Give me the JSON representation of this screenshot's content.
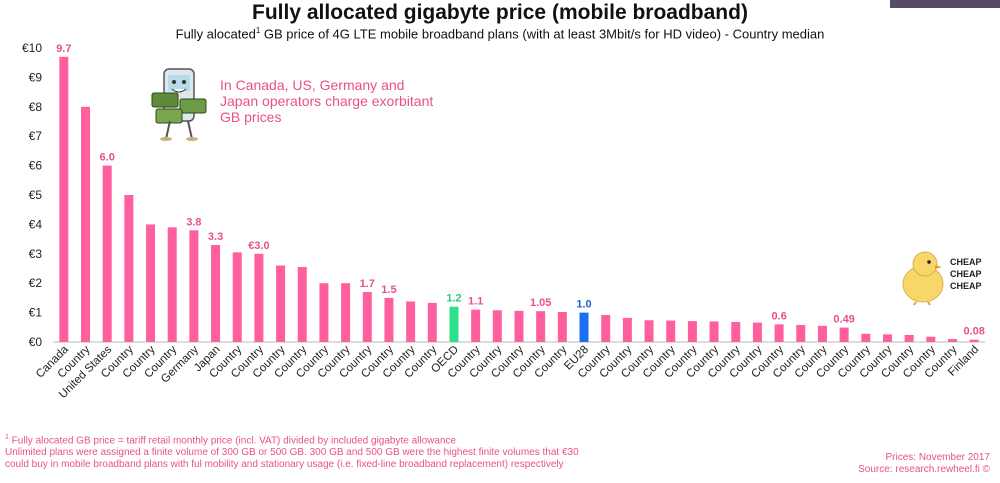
{
  "header": {
    "title": "Fully allocated gigabyte price (mobile broadband)",
    "subtitle_pre": "Fully alocated",
    "subtitle_sup": "1",
    "subtitle_post": " GB price of 4G LTE mobile broadband plans (with at least 3Mbit/s for HD video)  - Country  median"
  },
  "annotation": {
    "text": "In Canada, US, Germany and Japan operators charge exorbitant GB prices"
  },
  "cheap_badge": [
    "CHEAP",
    "CHEAP",
    "CHEAP"
  ],
  "footnote": {
    "sup": "1",
    "line1": " Fully alocated GB price  = tariff retail monthly price  (incl. VAT) divided by included  gigabyte allowance",
    "line2": "Unlimited plans were assigned a finite volume of 300 GB or 500 GB. 300 GB and 500 GB were the highest finite volumes that  €30",
    "line3": "could buy in mobile broadband plans with ful mobility and stationary usage (i.e. fixed-line broadband replacement) respectively"
  },
  "source": {
    "line1": "Prices: November 2017",
    "line2": "Source: research.rewheel.fi  ©"
  },
  "colors": {
    "bar_default": "#ff5f9e",
    "bar_oecd": "#2ee08a",
    "bar_eu28": "#1a6ff0",
    "label_default": "#e8508c",
    "label_oecd": "#2ec882",
    "label_eu28": "#1a5fd0"
  },
  "chart_data": {
    "type": "bar",
    "title": "Fully allocated gigabyte price (mobile broadband)",
    "ylim": [
      0,
      10
    ],
    "yticks": [
      "€0",
      "€1",
      "€2",
      "€3",
      "€4",
      "€5",
      "€6",
      "€7",
      "€8",
      "€9",
      "€10"
    ],
    "categories": [
      "Canada",
      "Country",
      "United States",
      "Country",
      "Country",
      "Country",
      "Germany",
      "Japan",
      "Country",
      "Country",
      "Country",
      "Country",
      "Country",
      "Country",
      "Country",
      "Country",
      "Country",
      "Country",
      "OECD",
      "Country",
      "Country",
      "Country",
      "Country",
      "Country",
      "EU28",
      "Country",
      "Country",
      "Country",
      "Country",
      "Country",
      "Country",
      "Country",
      "Country",
      "Country",
      "Country",
      "Country",
      "Country",
      "Country",
      "Country",
      "Country",
      "Country",
      "Country",
      "Finland"
    ],
    "values": [
      9.7,
      8.0,
      6.0,
      5.0,
      4.0,
      3.9,
      3.8,
      3.3,
      3.05,
      3.0,
      2.6,
      2.55,
      2.0,
      2.0,
      1.7,
      1.5,
      1.38,
      1.33,
      1.2,
      1.1,
      1.08,
      1.06,
      1.05,
      1.02,
      1.0,
      0.92,
      0.82,
      0.74,
      0.73,
      0.71,
      0.7,
      0.68,
      0.66,
      0.6,
      0.58,
      0.55,
      0.49,
      0.28,
      0.26,
      0.24,
      0.18,
      0.1,
      0.08
    ],
    "data_labels": [
      "9.7",
      "",
      "6.0",
      "",
      "",
      "",
      "3.8",
      "3.3",
      "",
      "€3.0",
      "",
      "",
      "",
      "",
      "1.7",
      "1.5",
      "",
      "",
      "1.2",
      "1.1",
      "",
      "",
      "1.05",
      "",
      "1.0",
      "",
      "",
      "",
      "",
      "",
      "",
      "",
      "",
      "0.6",
      "",
      "",
      "0.49",
      "",
      "",
      "",
      "",
      "",
      "0.08"
    ],
    "highlight": {
      "OECD": "oecd",
      "EU28": "eu28"
    },
    "xlabel": "",
    "ylabel": "",
    "grid": false
  }
}
